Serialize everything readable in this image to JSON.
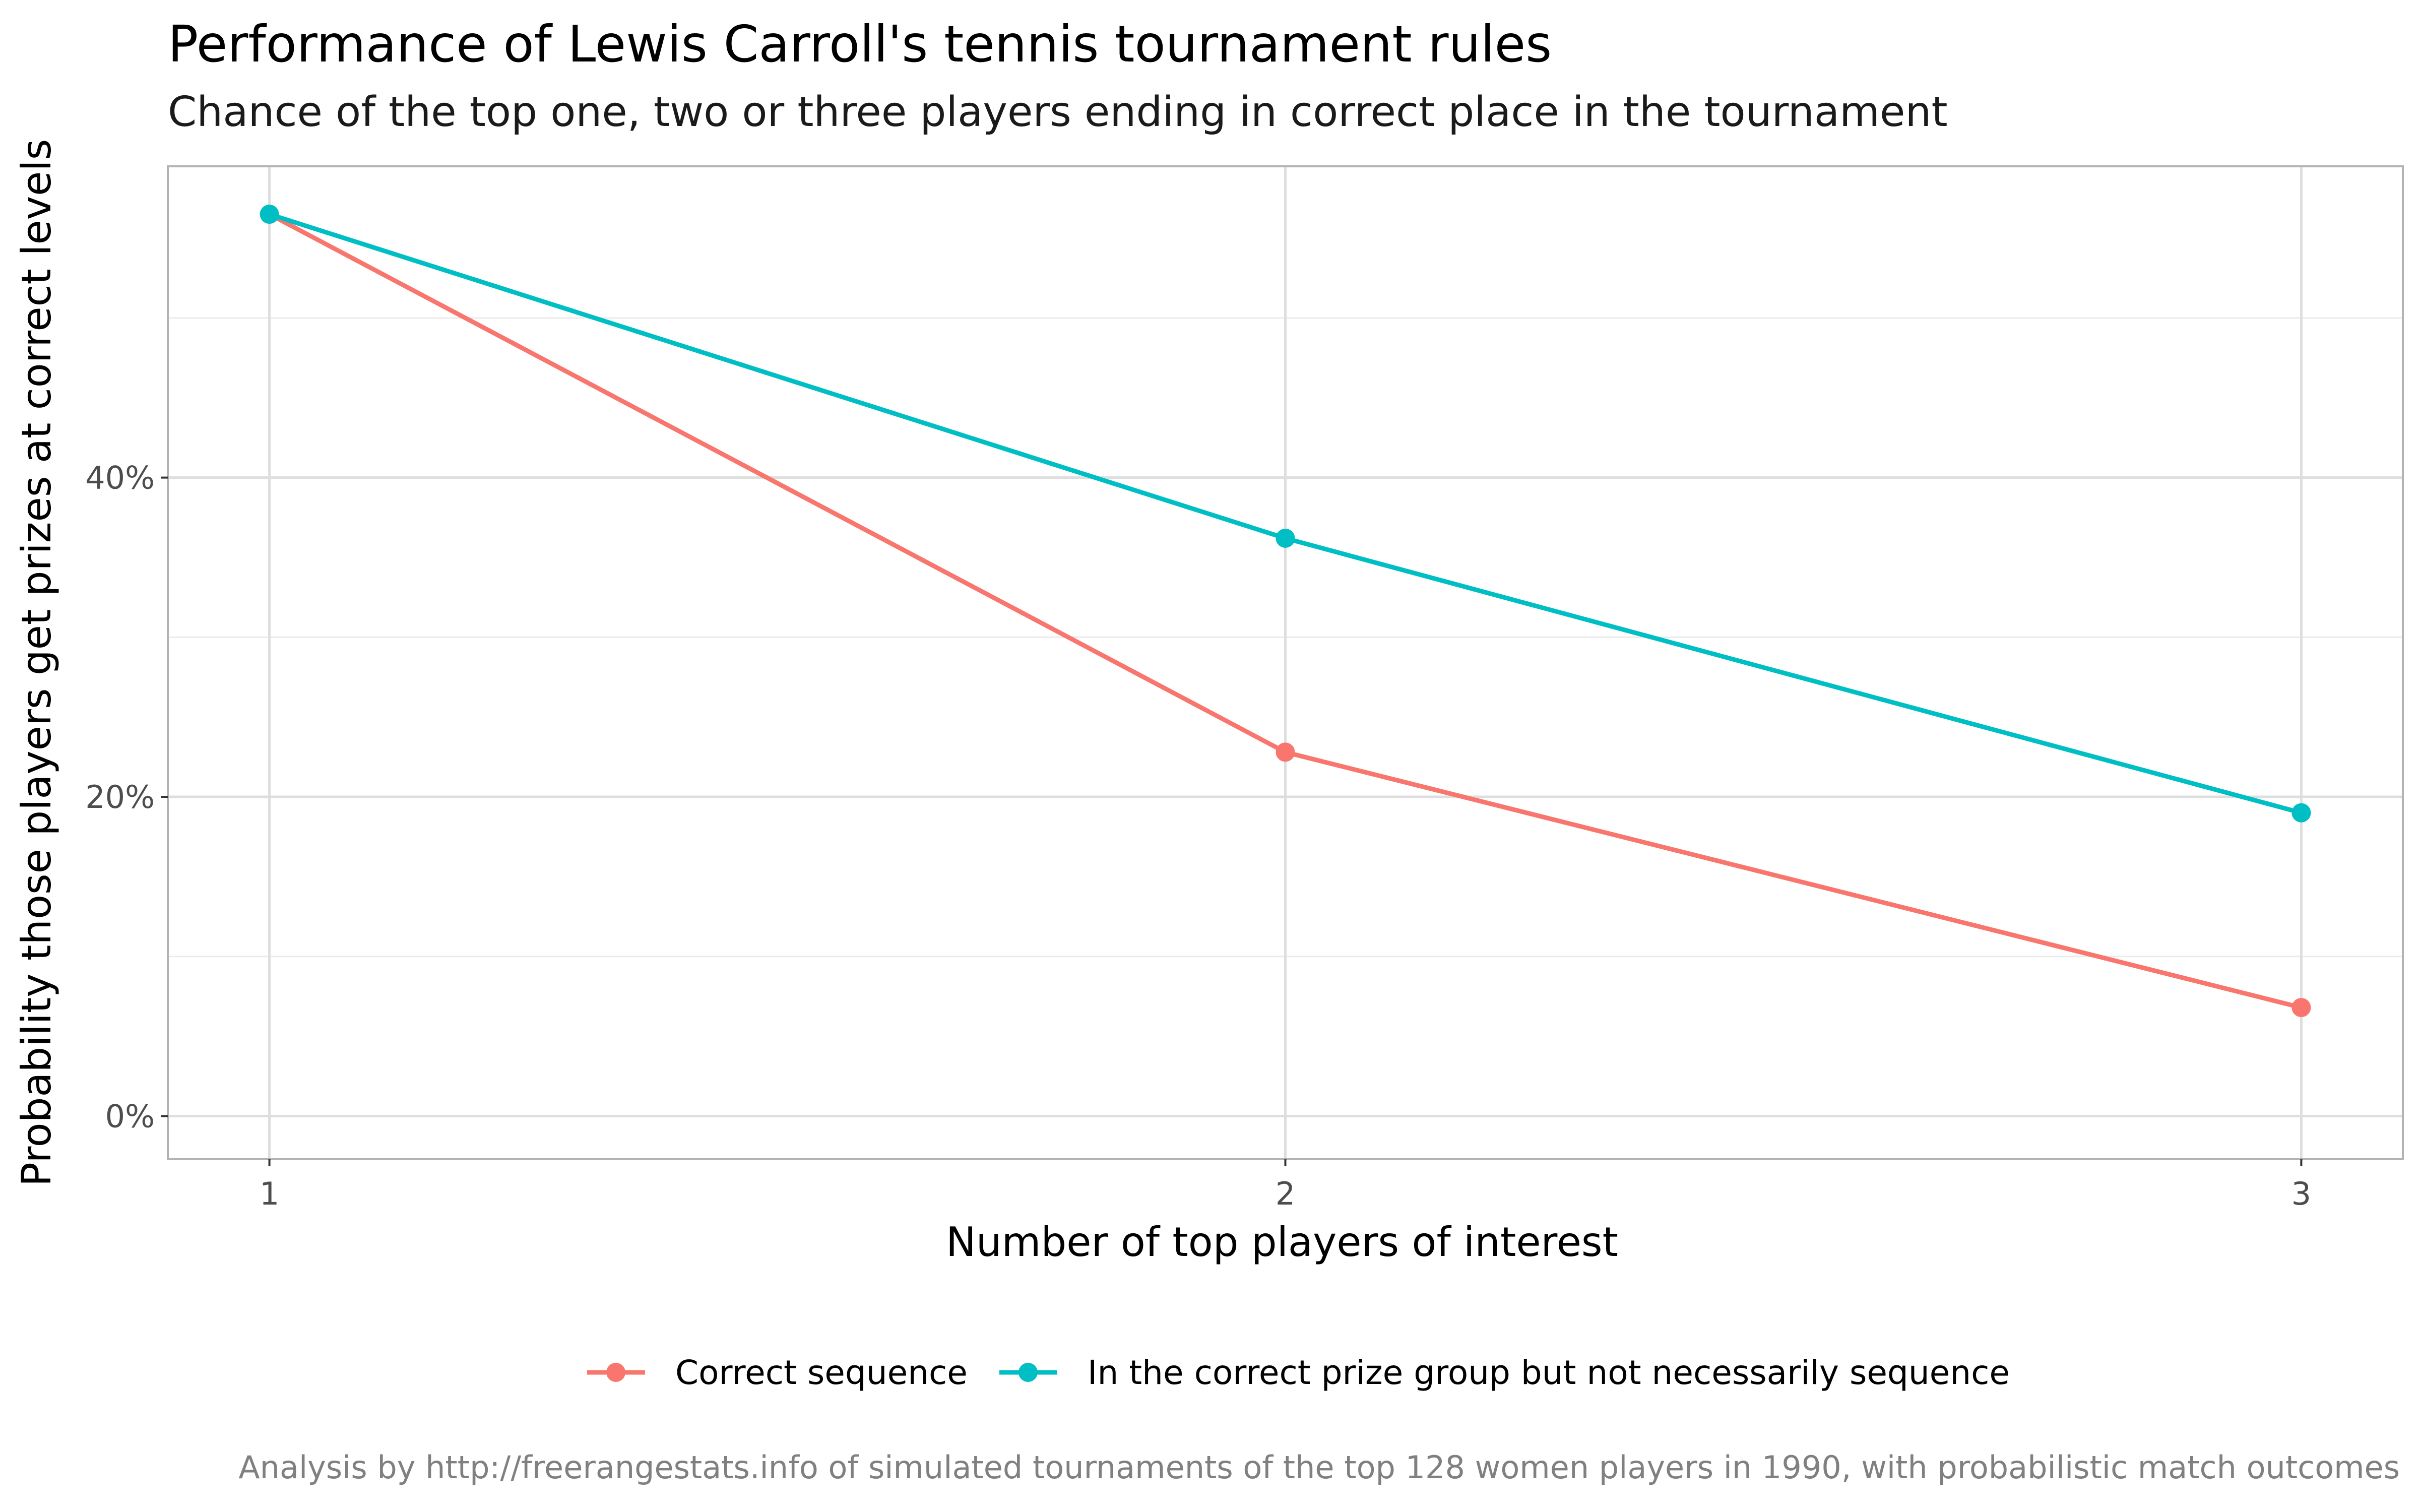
{
  "chart_data": {
    "type": "line",
    "title": "Performance of Lewis Carroll's tennis tournament rules",
    "subtitle": "Chance of the top one, two or three players ending in correct place in the tournament",
    "xlabel": "Number of top players of interest",
    "ylabel": "Probability those players get prizes at correct levels",
    "caption": "Analysis by http://freerangestats.info of simulated tournaments of the top 128 women players in 1990, with probabilistic match outcomes",
    "x": [
      1,
      2,
      3
    ],
    "x_tick_labels": [
      "1",
      "2",
      "3"
    ],
    "xlim": [
      0.9,
      3.1
    ],
    "ylim": [
      -0.027,
      0.595
    ],
    "y_ticks": [
      0,
      0.2,
      0.4
    ],
    "y_tick_labels": [
      "0%",
      "20%",
      "40%"
    ],
    "y_minor_ticks": [
      0.1,
      0.3,
      0.5
    ],
    "grid": true,
    "legend_position": "bottom",
    "series": [
      {
        "name": "Correct sequence",
        "color": "#F8766D",
        "values": [
          0.565,
          0.228,
          0.068
        ]
      },
      {
        "name": "In the correct prize group but not necessarily sequence",
        "color": "#00BFC4",
        "values": [
          0.565,
          0.362,
          0.19
        ]
      }
    ]
  }
}
